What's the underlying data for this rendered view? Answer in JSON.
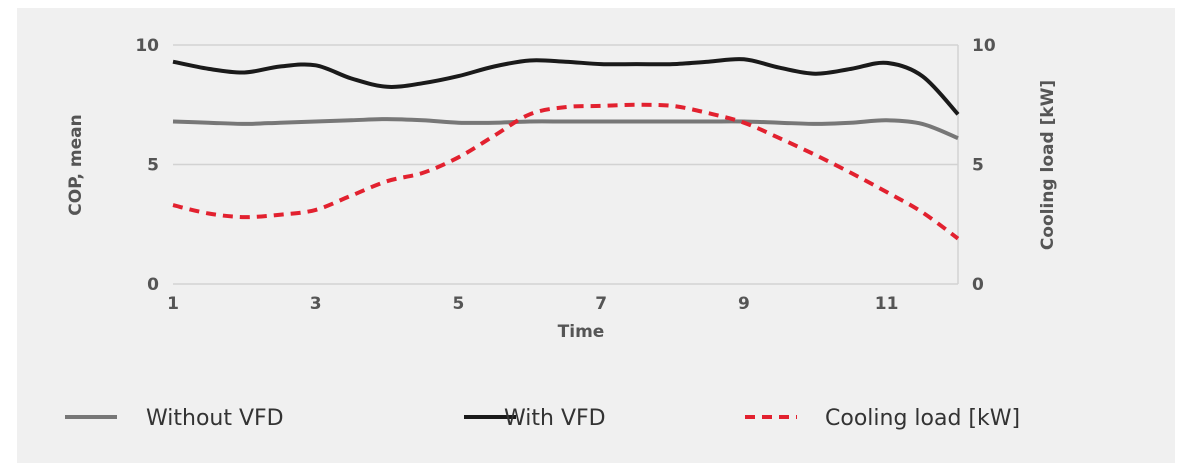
{
  "chart_data": {
    "type": "line",
    "xlabel": "Time",
    "ylabel_left": "COP, mean",
    "ylabel_right": "Cooling load [kW]",
    "xlim": [
      1,
      12
    ],
    "ylim_left": [
      0,
      10
    ],
    "ylim_right": [
      0,
      10
    ],
    "x_ticks": [
      "1",
      "3",
      "5",
      "7",
      "9",
      "11"
    ],
    "y_ticks_left": [
      "0",
      "5",
      "10"
    ],
    "y_ticks_right": [
      "0",
      "5",
      "10"
    ],
    "grid": "horizontal",
    "legend_position": "bottom",
    "series": [
      {
        "name": "Without VFD",
        "axis": "left",
        "color": "#777777",
        "style": "solid",
        "x": [
          1,
          1.5,
          2,
          2.5,
          3,
          3.5,
          4,
          4.5,
          5,
          5.5,
          6,
          6.5,
          7,
          7.5,
          8,
          8.5,
          9,
          9.5,
          10,
          10.5,
          11,
          11.5,
          12
        ],
        "values": [
          6.8,
          6.75,
          6.7,
          6.75,
          6.8,
          6.85,
          6.9,
          6.85,
          6.75,
          6.75,
          6.8,
          6.8,
          6.8,
          6.8,
          6.8,
          6.8,
          6.8,
          6.75,
          6.7,
          6.75,
          6.85,
          6.7,
          6.1
        ]
      },
      {
        "name": "With VFD",
        "axis": "left",
        "color": "#1a1a1a",
        "style": "solid",
        "x": [
          1,
          1.5,
          2,
          2.5,
          3,
          3.5,
          4,
          4.5,
          5,
          5.5,
          6,
          6.5,
          7,
          7.5,
          8,
          8.5,
          9,
          9.5,
          10,
          10.5,
          11,
          11.5,
          12
        ],
        "values": [
          9.3,
          9.0,
          8.85,
          9.1,
          9.15,
          8.6,
          8.25,
          8.4,
          8.7,
          9.1,
          9.35,
          9.3,
          9.2,
          9.2,
          9.2,
          9.3,
          9.4,
          9.05,
          8.8,
          9.0,
          9.25,
          8.7,
          7.1
        ]
      },
      {
        "name": "Cooling load [kW]",
        "axis": "right",
        "color": "#e2212f",
        "style": "dashed",
        "x": [
          1,
          1.5,
          2,
          2.5,
          3,
          3.5,
          4,
          4.5,
          5,
          5.5,
          6,
          6.5,
          7,
          7.5,
          8,
          8.5,
          9,
          9.5,
          10,
          10.5,
          11,
          11.5,
          12
        ],
        "values": [
          3.3,
          2.95,
          2.8,
          2.9,
          3.1,
          3.7,
          4.3,
          4.65,
          5.3,
          6.2,
          7.1,
          7.4,
          7.45,
          7.5,
          7.45,
          7.15,
          6.75,
          6.1,
          5.4,
          4.65,
          3.85,
          3.0,
          1.9
        ]
      }
    ]
  }
}
